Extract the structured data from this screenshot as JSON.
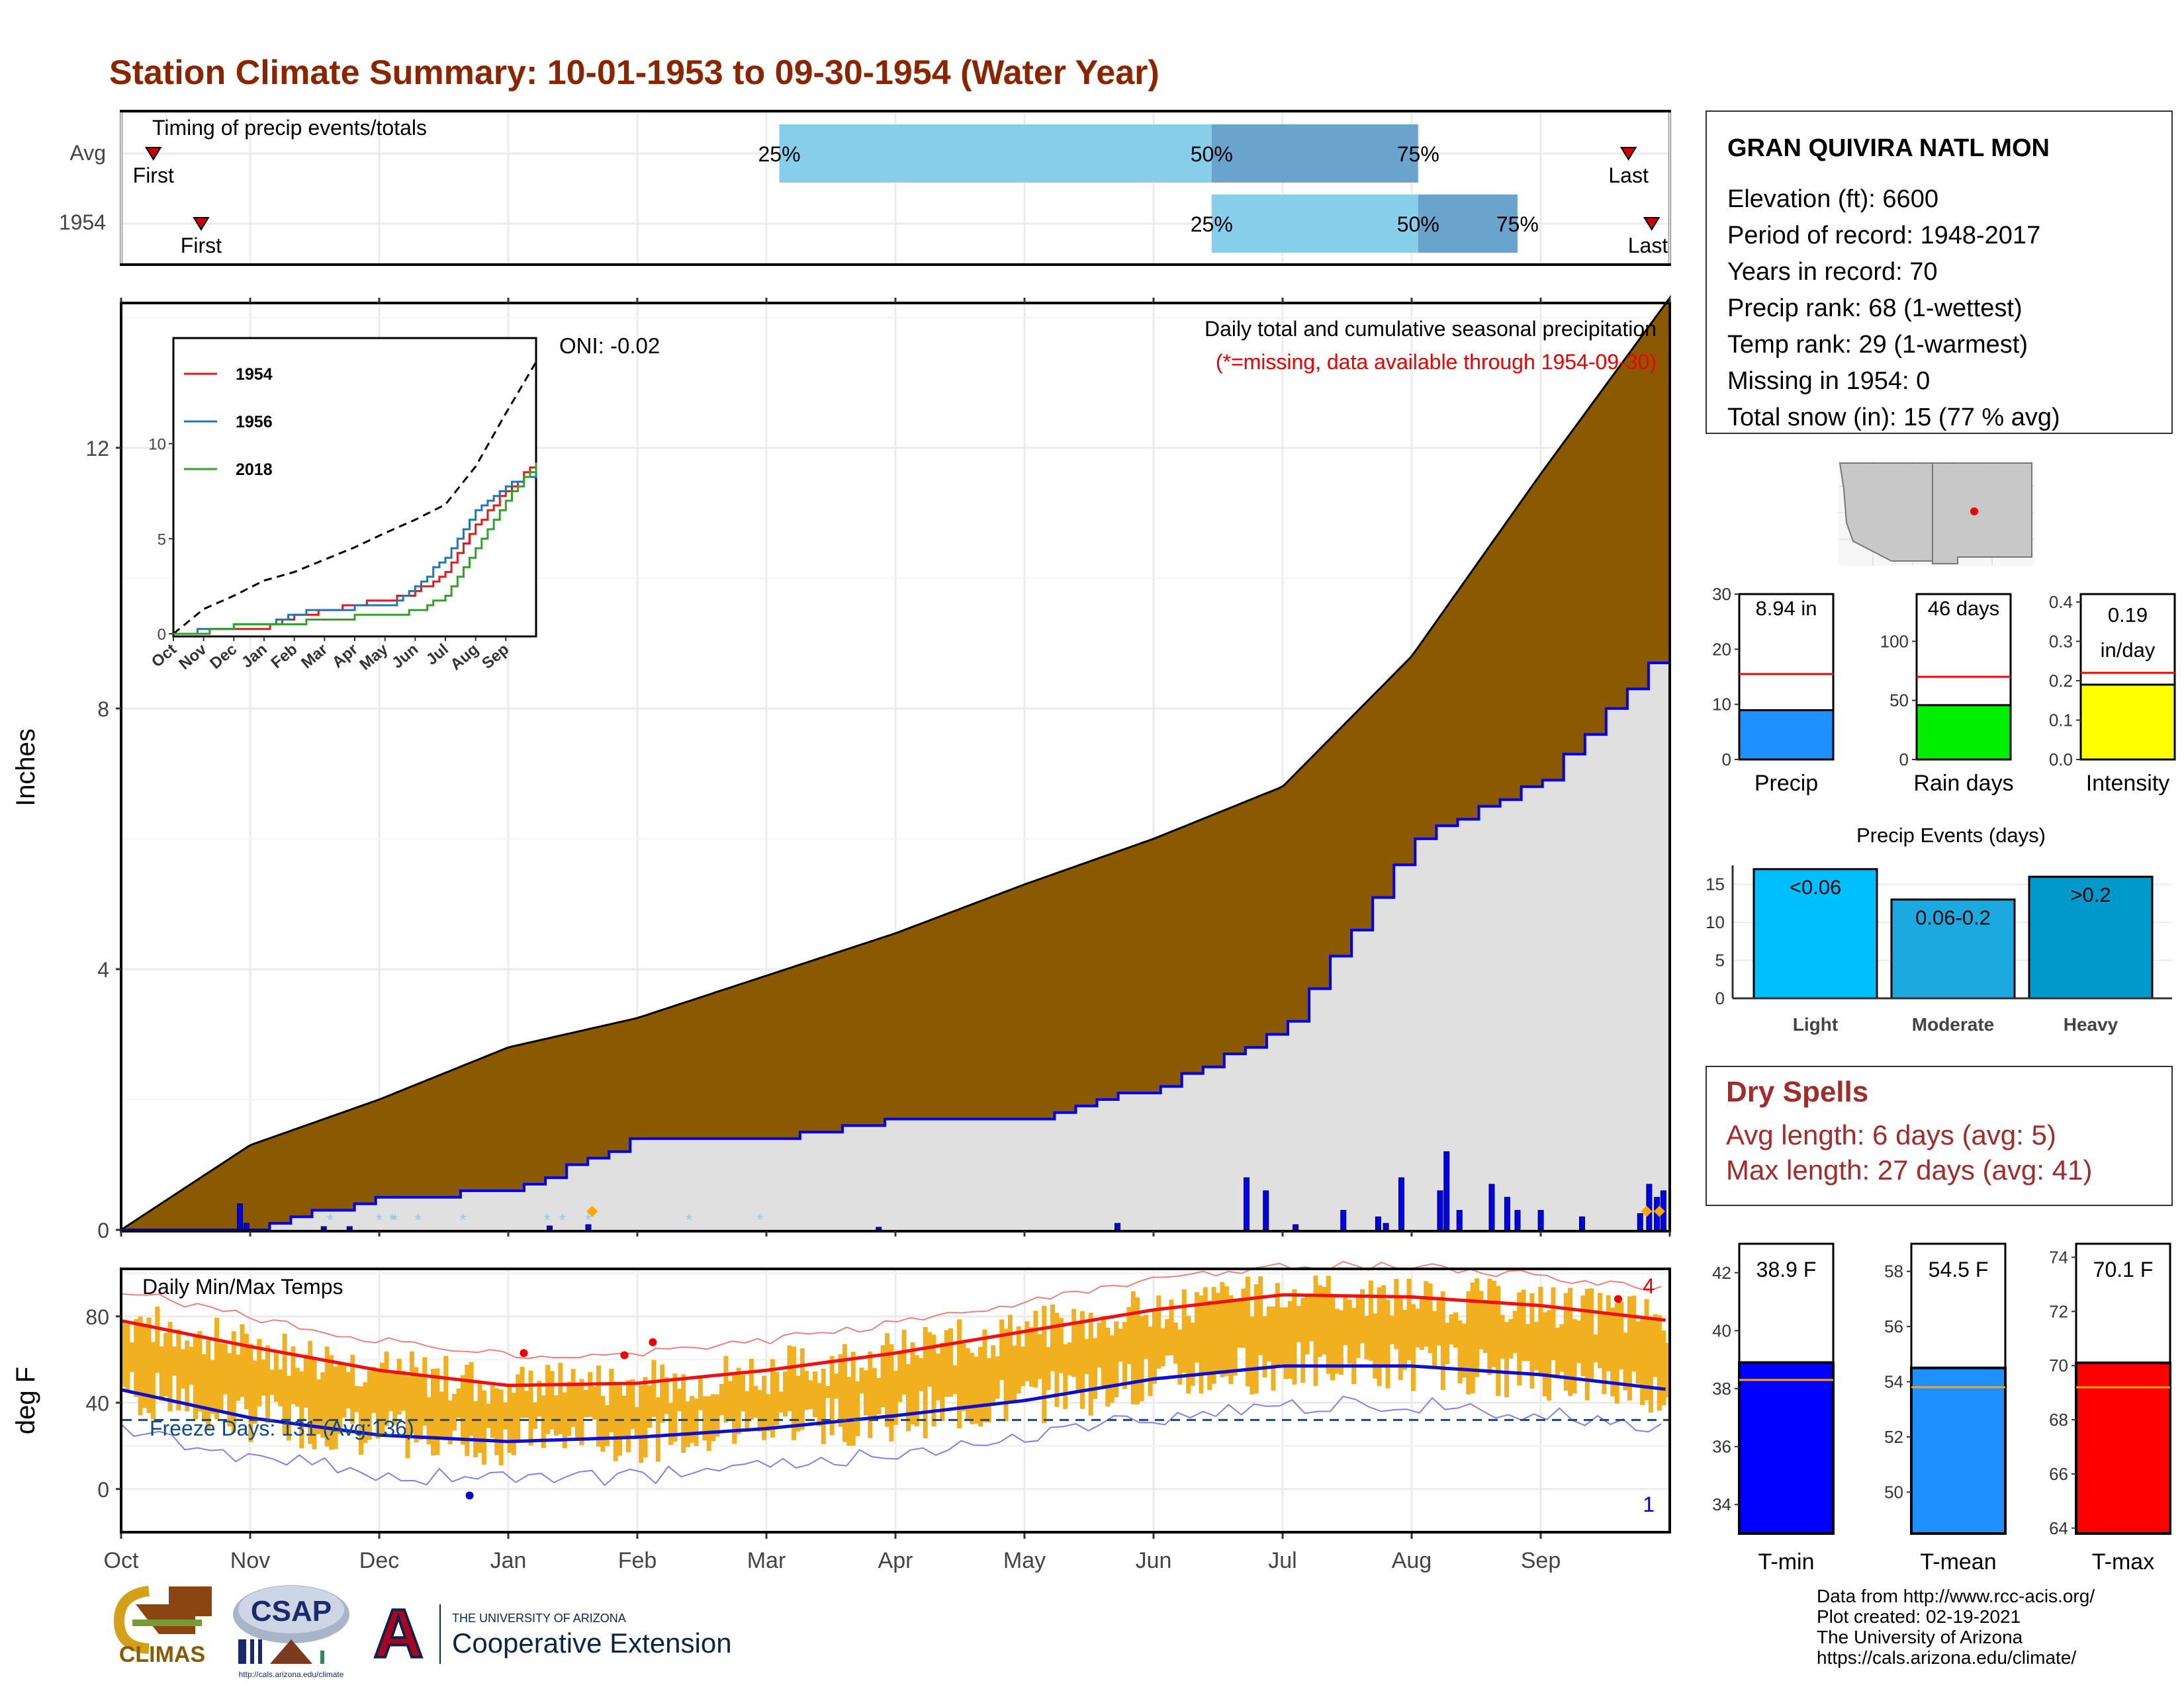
{
  "title": "Station Climate Summary: 10-01-1953 to 09-30-1954 (Water Year)",
  "colors": {
    "title": "#8b2500",
    "precip_fill": "#8b5a00",
    "avg_fill": "#e0e0e0",
    "avg_line": "#0000ee",
    "temp_bar": "#f0b020",
    "tmax_line": "#ee1111",
    "tmin_line": "#1010cc",
    "snow": "#87ceeb",
    "orange_marker": "#ffa500",
    "q_light": "#87ceeb",
    "q_dark": "#6aa3cc",
    "dry_text": "#a52a2a"
  },
  "timing": {
    "label": "Timing of precip events/totals",
    "rows": [
      {
        "label": "Avg",
        "first_label": "First",
        "last_label": "Last",
        "first_month": 0.25,
        "last_month": 11.68,
        "q25": 5.1,
        "q50": 8.45,
        "q75": 10.05,
        "q25_label": "25%",
        "q50_label": "50%",
        "q75_label": "75%"
      },
      {
        "label": "1954",
        "first_label": "First",
        "last_label": "Last",
        "first_month": 0.62,
        "last_month": 11.86,
        "q25": 8.45,
        "q50": 10.05,
        "q75": 10.82,
        "q25_label": "25%",
        "q50_label": "50%",
        "q75_label": "75%"
      }
    ]
  },
  "precip_panel": {
    "ylabel": "Inches",
    "title": "Daily total and cumulative seasonal precipitation",
    "subtitle": "(*=missing, data available through 1954-09-30)",
    "oni": "ONI: -0.02",
    "yticks": [
      "0",
      "4",
      "8",
      "12"
    ],
    "months": [
      "Oct",
      "Nov",
      "Dec",
      "Jan",
      "Feb",
      "Mar",
      "Apr",
      "May",
      "Jun",
      "Jul",
      "Aug",
      "Sep"
    ]
  },
  "inset": {
    "months": [
      "Oct",
      "Nov",
      "Dec",
      "Jan",
      "Feb",
      "Mar",
      "Apr",
      "May",
      "Jun",
      "Jul",
      "Aug",
      "Sep"
    ],
    "yticks": [
      "0",
      "5",
      "10"
    ],
    "legend": [
      {
        "name": "1954",
        "color": "#e31a1c"
      },
      {
        "name": "1956",
        "color": "#1f78b4"
      },
      {
        "name": "2018",
        "color": "#33a02c"
      }
    ]
  },
  "temp_panel": {
    "ylabel": "deg F",
    "title": "Daily Min/Max Temps",
    "freeze_label": "Freeze Days: 131 (Avg:136)",
    "count_max": "4",
    "count_min": "1",
    "yticks": [
      "0",
      "40",
      "80"
    ],
    "months": [
      "Oct",
      "Nov",
      "Dec",
      "Jan",
      "Feb",
      "Mar",
      "Apr",
      "May",
      "Jun",
      "Jul",
      "Aug",
      "Sep"
    ]
  },
  "station": {
    "name": "GRAN QUIVIRA NATL MON",
    "lines": [
      "Elevation (ft): 6600",
      "Period of record: 1948-2017",
      "Years in record: 70",
      "Precip rank: 68 (1-wettest)",
      "Temp rank: 29 (1-warmest)",
      "Missing in 1954: 0",
      "Total snow (in): 15 (77 % avg)"
    ]
  },
  "mini_bars": [
    {
      "label": "Precip",
      "value_label": "8.94 in",
      "value": 8.94,
      "avg": 15.5,
      "yticks": [
        "0",
        "10",
        "20",
        "30"
      ],
      "ymax": 30,
      "color": "#1e90ff"
    },
    {
      "label": "Rain days",
      "value_label": "46 days",
      "value": 46,
      "avg": 70,
      "yticks": [
        "0",
        "50",
        "100"
      ],
      "ymax": 140,
      "color": "#00ee00"
    },
    {
      "label": "Intensity",
      "value_label": "0.19 in/day",
      "value": 0.19,
      "avg": 0.22,
      "yticks": [
        "0.0",
        "0.1",
        "0.2",
        "0.3",
        "0.4"
      ],
      "ymax": 0.42,
      "color": "#ffff00"
    }
  ],
  "events": {
    "title": "Precip Events (days)",
    "yticks": [
      "0",
      "5",
      "10",
      "15"
    ],
    "bars": [
      {
        "category": "Light",
        "label": "<0.06",
        "value": 17,
        "color": "#00bfff"
      },
      {
        "category": "Moderate",
        "label": "0.06-0.2",
        "value": 13,
        "color": "#1ca9e0"
      },
      {
        "category": "Heavy",
        "label": ">0.2",
        "value": 16,
        "color": "#0099cc"
      }
    ]
  },
  "dry_spells": {
    "title": "Dry Spells",
    "avg": "Avg length: 6 days (avg: 5)",
    "max": "Max length: 27 days (avg: 41)"
  },
  "temp_bars": [
    {
      "label": "T-min",
      "value_label": "38.9 F",
      "value": 38.9,
      "avg": 38.3,
      "ymin": 33,
      "ymax": 43,
      "yticks": [
        "34",
        "36",
        "38",
        "40",
        "42"
      ],
      "color": "#0000ff"
    },
    {
      "label": "T-mean",
      "value_label": "54.5 F",
      "value": 54.5,
      "avg": 53.8,
      "ymin": 48.5,
      "ymax": 59,
      "yticks": [
        "50",
        "52",
        "54",
        "56",
        "58"
      ],
      "color": "#1e90ff"
    },
    {
      "label": "T-max",
      "value_label": "70.1 F",
      "value": 70.1,
      "avg": 69.2,
      "ymin": 63.8,
      "ymax": 74.5,
      "yticks": [
        "64",
        "66",
        "68",
        "70",
        "72",
        "74"
      ],
      "color": "#ff0000"
    }
  ],
  "credits": [
    "Data from http://www.rcc-acis.org/",
    "Plot created: 02-19-2021",
    "The University of Arizona",
    "https://cals.arizona.edu/climate/"
  ],
  "logos": {
    "climas": "CLIMAS",
    "csap": "CSAP",
    "csap_url": "http://cals.arizona.edu/climate",
    "ua_small": "THE UNIVERSITY OF ARIZONA",
    "ua_big": "Cooperative Extension",
    "ua_letter": "A"
  },
  "chart_data": [
    {
      "type": "area",
      "title": "Daily total and cumulative seasonal precipitation",
      "ylabel": "Inches",
      "ylim": [
        0,
        14.1
      ],
      "x": [
        "Oct",
        "Nov",
        "Dec",
        "Jan",
        "Feb",
        "Mar",
        "Apr",
        "May",
        "Jun",
        "Jul",
        "Aug",
        "Sep",
        "end"
      ],
      "series": [
        {
          "name": "",
          "values": [
            0,
            1.3,
            2.0,
            2.8,
            3.25,
            3.9,
            4.55,
            5.3,
            6.0,
            6.8,
            8.8,
            11.6,
            14.3
          ]
        },
        {
          "name": "",
          "values": [
            0,
            0.05,
            0.5,
            0.6,
            1.4,
            1.4,
            1.7,
            1.7,
            2.2,
            3.1,
            6.0,
            6.9,
            9.0
          ]
        }
      ]
    },
    {
      "type": "line",
      "title": "Daily Min/Max Temps",
      "ylabel": "deg F",
      "ylim": [
        -20,
        102
      ],
      "x": [
        "Oct",
        "Nov",
        "Dec",
        "Jan",
        "Feb",
        "Mar",
        "Apr",
        "May",
        "Jun",
        "Jul",
        "Aug",
        "Sep",
        "end"
      ],
      "series": [
        {
          "name": "",
          "values": [
            78,
            66,
            55,
            48,
            49,
            55,
            63,
            73,
            83,
            90,
            89,
            85,
            78
          ]
        },
        {
          "name": "",
          "values": [
            46,
            33,
            25,
            22,
            24,
            28,
            34,
            41,
            51,
            57,
            57,
            53,
            46
          ]
        }
      ]
    },
    {
      "type": "line",
      "title": "",
      "ylim": [
        0,
        15
      ],
      "x": [
        "Oct",
        "Nov",
        "Dec",
        "Jan",
        "Feb",
        "Mar",
        "Apr",
        "May",
        "Jun",
        "Jul",
        "Aug",
        "Sep",
        "end"
      ],
      "series": [
        {
          "name": "",
          "values": [
            0,
            1.3,
            2.0,
            2.8,
            3.25,
            3.9,
            4.55,
            5.3,
            6.0,
            6.8,
            8.8,
            11.6,
            14.3
          ]
        },
        {
          "name": "1954",
          "values": [
            0,
            0.1,
            0.3,
            0.3,
            1.0,
            1.2,
            1.6,
            1.7,
            2.2,
            3.2,
            5.7,
            7.5,
            9.0
          ]
        },
        {
          "name": "1956",
          "values": [
            0,
            0.2,
            0.4,
            0.5,
            1.1,
            1.2,
            1.4,
            1.4,
            2.5,
            4.0,
            6.5,
            7.8,
            8.5
          ]
        },
        {
          "name": "2018",
          "values": [
            0,
            0.1,
            0.4,
            0.4,
            0.6,
            0.7,
            0.9,
            1.0,
            1.2,
            2.0,
            4.5,
            7.0,
            8.9
          ]
        }
      ]
    },
    {
      "type": "bar",
      "categories": [
        "Precip",
        "Rain days",
        "Intensity"
      ],
      "values": [
        8.94,
        46,
        0.19
      ]
    },
    {
      "type": "bar",
      "title": "Precip Events (days)",
      "categories": [
        "Light",
        "Moderate",
        "Heavy"
      ],
      "values": [
        17,
        13,
        16
      ],
      "ylim": [
        0,
        17.5
      ]
    },
    {
      "type": "bar",
      "categories": [
        "T-min",
        "T-mean",
        "T-max"
      ],
      "values": [
        38.9,
        54.5,
        70.1
      ]
    }
  ]
}
